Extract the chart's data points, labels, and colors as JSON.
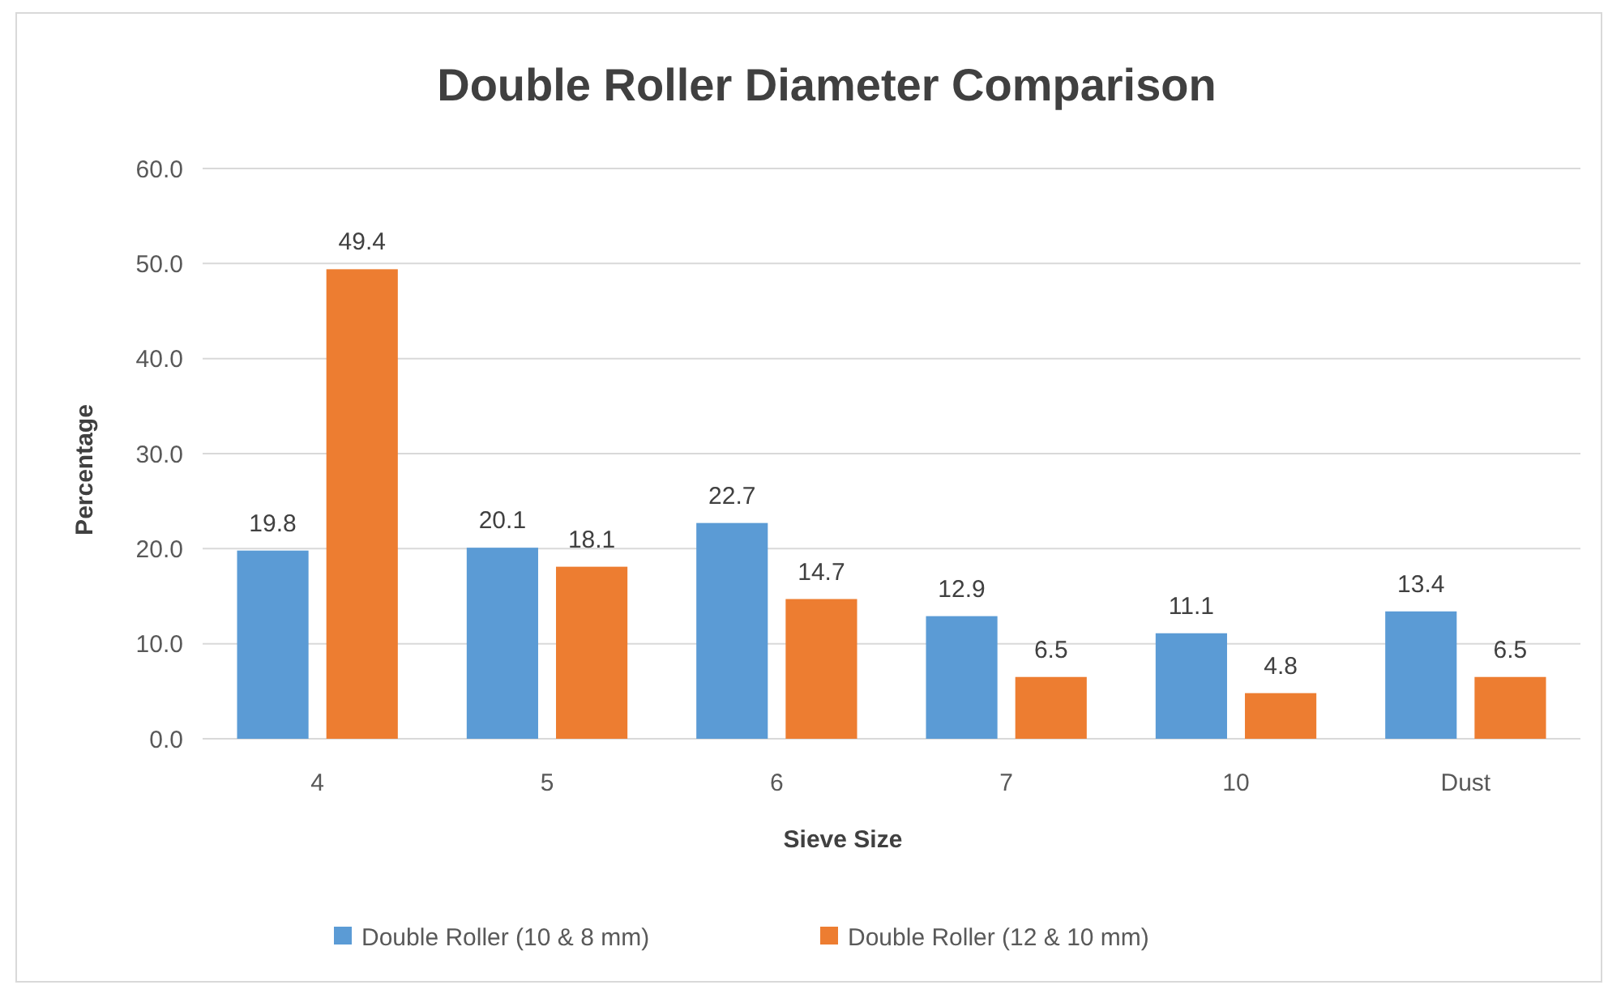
{
  "chart_data": {
    "type": "bar",
    "title": "Double Roller Diameter Comparison",
    "xlabel": "Sieve Size",
    "ylabel": "Percentage",
    "categories": [
      "4",
      "5",
      "6",
      "7",
      "10",
      "Dust"
    ],
    "series": [
      {
        "name": "Double Roller (10 & 8 mm)",
        "color": "#5b9bd5",
        "values": [
          19.8,
          20.1,
          22.7,
          12.9,
          11.1,
          13.4
        ]
      },
      {
        "name": "Double Roller (12 & 10 mm)",
        "color": "#ed7d31",
        "values": [
          49.4,
          18.1,
          14.7,
          6.5,
          4.8,
          6.5
        ]
      }
    ],
    "ylim": [
      0,
      60
    ],
    "yticks": [
      {
        "value": 0,
        "label": "0.0"
      },
      {
        "value": 10,
        "label": "10.0"
      },
      {
        "value": 20,
        "label": "20.0"
      },
      {
        "value": 30,
        "label": "30.0"
      },
      {
        "value": 40,
        "label": "40.0"
      },
      {
        "value": 50,
        "label": "50.0"
      },
      {
        "value": 60,
        "label": "60.0"
      }
    ],
    "grid": "y",
    "legend": "bottom",
    "data_labels": true
  }
}
